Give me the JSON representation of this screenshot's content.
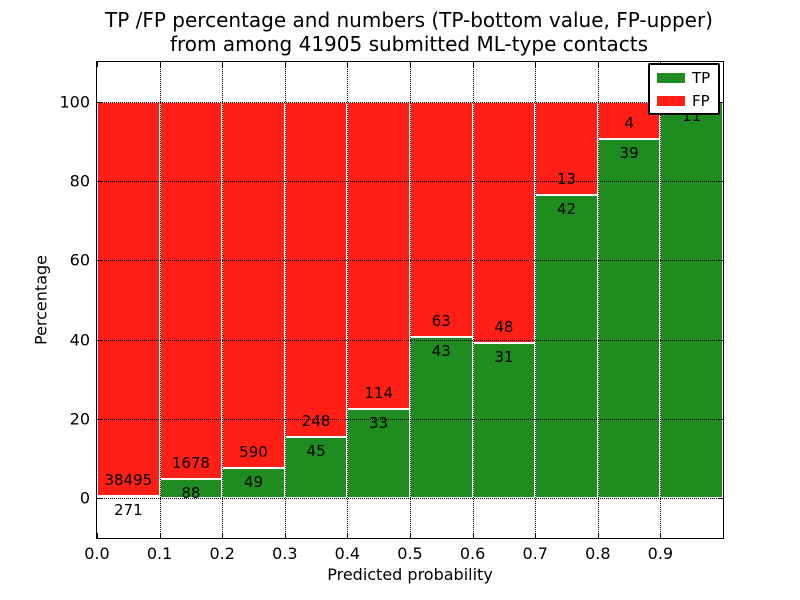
{
  "title": {
    "line1": "TP /FP percentage and numbers (TP-bottom value, FP-upper)",
    "line2": "from among 41905 submitted ML-type contacts"
  },
  "axes": {
    "xlabel": "Predicted probability",
    "ylabel": "Percentage"
  },
  "legend": {
    "position": "upper right",
    "entries": [
      {
        "label": "TP",
        "color": "#1f8c1f"
      },
      {
        "label": "FP",
        "color": "#ff1f16"
      }
    ]
  },
  "chart_data": {
    "type": "bar",
    "stacked": true,
    "normalized_to_percent": true,
    "title": "TP /FP percentage and numbers (TP-bottom value, FP-upper)\nfrom among 41905 submitted ML-type contacts",
    "xlabel": "Predicted probability",
    "ylabel": "Percentage",
    "total_contacts": 41905,
    "grid": true,
    "xlim": [
      0.0,
      1.0
    ],
    "ylim": [
      -10,
      110
    ],
    "bin_width": 0.1,
    "x_ticks": [
      0.0,
      0.1,
      0.2,
      0.3,
      0.4,
      0.5,
      0.6,
      0.7,
      0.8,
      0.9
    ],
    "x_tick_labels": [
      "0.0",
      "0.1",
      "0.2",
      "0.3",
      "0.4",
      "0.5",
      "0.6",
      "0.7",
      "0.8",
      "0.9"
    ],
    "y_ticks": [
      0,
      20,
      40,
      60,
      80,
      100
    ],
    "y_tick_labels": [
      "0",
      "20",
      "40",
      "60",
      "80",
      "100"
    ],
    "categories": [
      "0.0-0.1",
      "0.1-0.2",
      "0.2-0.3",
      "0.3-0.4",
      "0.4-0.5",
      "0.5-0.6",
      "0.6-0.7",
      "0.7-0.8",
      "0.8-0.9",
      "0.9-1.0"
    ],
    "series": [
      {
        "name": "TP",
        "color": "#1f8c1f",
        "counts": [
          271,
          88,
          49,
          45,
          33,
          43,
          31,
          42,
          39,
          11
        ]
      },
      {
        "name": "FP",
        "color": "#ff1f16",
        "counts": [
          38495,
          1678,
          590,
          248,
          114,
          63,
          48,
          13,
          4,
          0
        ]
      }
    ],
    "tp_percent_of_bin": [
      0.7,
      5.0,
      7.7,
      15.4,
      22.4,
      40.6,
      39.2,
      76.4,
      90.7,
      100.0
    ]
  }
}
